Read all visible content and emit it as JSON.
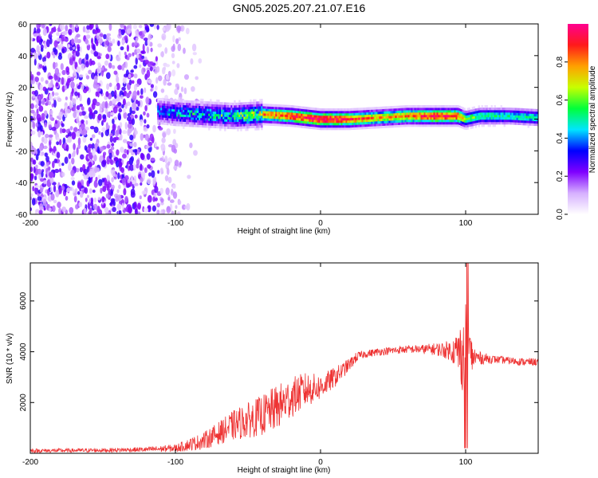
{
  "title": "GN05.2025.207.21.07.E16",
  "chart_data": [
    {
      "type": "heatmap",
      "title": "",
      "xlabel": "Height of straight line (km)",
      "ylabel": "Frequency (Hz)",
      "xlim": [
        -200,
        150
      ],
      "ylim": [
        -60,
        60
      ],
      "x_ticks": [
        -200,
        -100,
        0,
        100
      ],
      "y_ticks": [
        -60,
        -40,
        -20,
        0,
        20,
        40,
        60
      ],
      "colorbar": {
        "label": "Normalized spectral amplitude",
        "range": [
          0,
          1
        ],
        "ticks": [
          0.0,
          0.2,
          0.4,
          0.6,
          0.8
        ],
        "colors": [
          "#ffffff",
          "#d6b0ff",
          "#7f00ff",
          "#0000ff",
          "#00e5ff",
          "#00ff3a",
          "#c8ff00",
          "#ffa000",
          "#ff1a1a",
          "#ff0090"
        ]
      },
      "band": {
        "description_points_x": [
          -110,
          -100,
          -80,
          -60,
          -40,
          -20,
          -10,
          0,
          20,
          40,
          60,
          80,
          95,
          100,
          110,
          130,
          150
        ],
        "center_freq": [
          5,
          4,
          3,
          2,
          3,
          2,
          1,
          0,
          0,
          1,
          2,
          2,
          2,
          0,
          2,
          2,
          1
        ],
        "peak_amplitude": [
          0.45,
          0.5,
          0.55,
          0.6,
          0.8,
          0.9,
          0.95,
          1.0,
          0.9,
          0.75,
          0.8,
          0.95,
          0.9,
          0.6,
          0.55,
          0.5,
          0.5
        ]
      },
      "noise_region": {
        "x_range": [
          -200,
          -80
        ],
        "amplitude_range": [
          0.05,
          0.3
        ]
      }
    },
    {
      "type": "line",
      "title": "",
      "xlabel": "Height of straight line (km)",
      "ylabel": "SNR (10 * v/v)",
      "xlim": [
        -200,
        150
      ],
      "ylim": [
        0,
        7500
      ],
      "x_ticks": [
        -200,
        -100,
        0,
        100
      ],
      "y_ticks": [
        2000,
        4000,
        6000
      ],
      "series": [
        {
          "color": "#ee3333",
          "x": [
            -200,
            -150,
            -120,
            -100,
            -90,
            -80,
            -70,
            -60,
            -50,
            -40,
            -30,
            -20,
            -10,
            0,
            10,
            20,
            25,
            30,
            40,
            50,
            60,
            70,
            80,
            90,
            95,
            100,
            102,
            105,
            110,
            120,
            130,
            140,
            150
          ],
          "y": [
            100,
            120,
            150,
            200,
            350,
            500,
            800,
            1100,
            1300,
            1500,
            1800,
            2200,
            2500,
            2600,
            3000,
            3500,
            3800,
            3900,
            4000,
            4050,
            4100,
            4100,
            4100,
            4050,
            4000,
            3900,
            3800,
            3800,
            3750,
            3700,
            3650,
            3600,
            3600
          ],
          "noise": [
            80,
            80,
            100,
            150,
            250,
            350,
            450,
            600,
            700,
            800,
            900,
            800,
            700,
            500,
            400,
            250,
            200,
            150,
            150,
            150,
            150,
            180,
            250,
            400,
            900,
            2000,
            1500,
            500,
            250,
            150,
            150,
            150,
            150
          ]
        }
      ]
    }
  ]
}
